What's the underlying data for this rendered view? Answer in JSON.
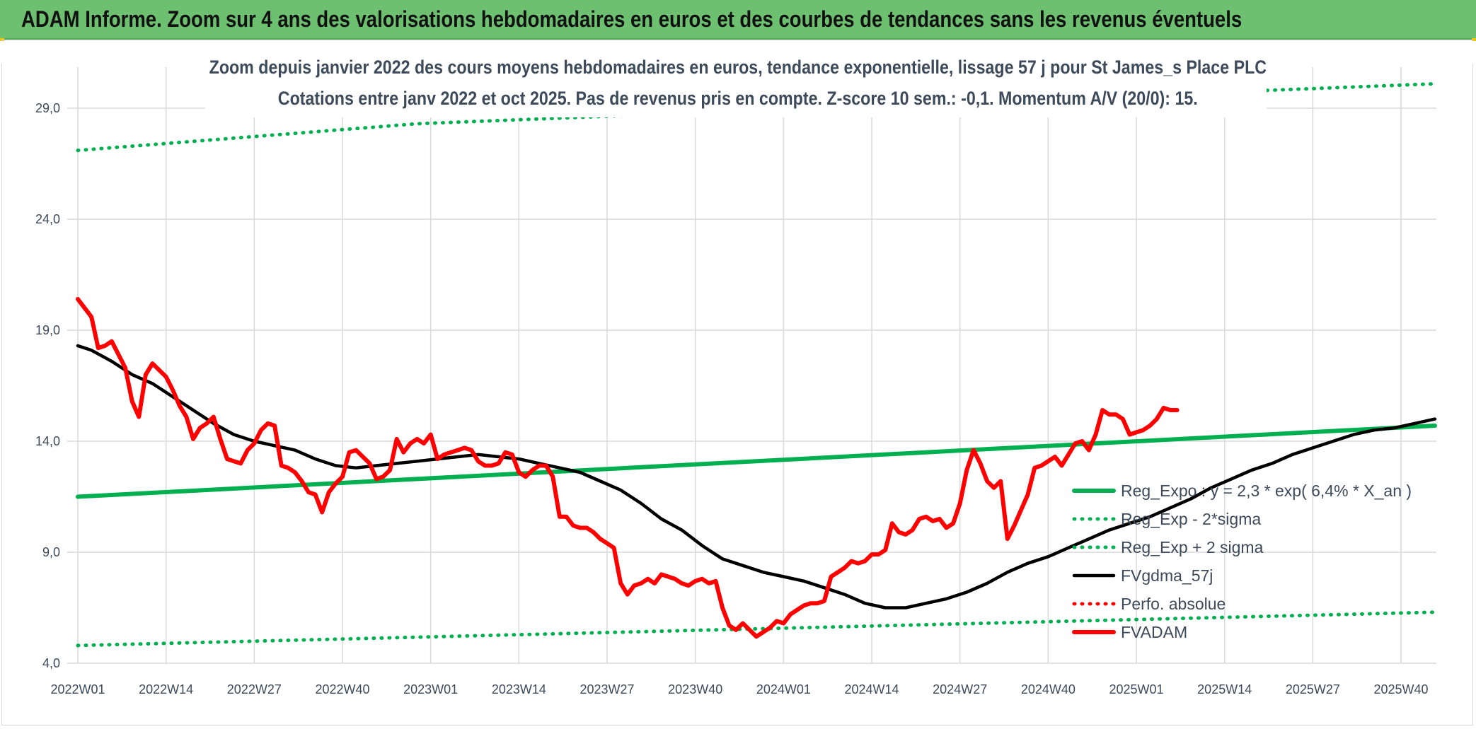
{
  "banner": {
    "title": "ADAM Informe. Zoom sur 4 ans des valorisations hebdomadaires en euros et des courbes de tendances sans les revenus éventuels"
  },
  "colors": {
    "banner_bg": "#6cc070",
    "trend_green": "#00b050",
    "price_red": "#ff0000",
    "smooth_black": "#000000",
    "grid": "#d9d9d9",
    "text": "#3d4a5a"
  },
  "chart_data": {
    "type": "line",
    "title_line1": "Zoom depuis janvier 2022 des cours moyens hebdomadaires en euros, tendance exponentielle, lissage 57 j pour St James_s Place PLC",
    "title_line2": "Cotations entre janv 2022 et oct 2025. Pas de revenus pris en compte. Z-score 10 sem.: -0,1. Momentum A/V (20/0): 15.",
    "xlabel": "",
    "ylabel": "",
    "ylim": [
      4.0,
      30.0
    ],
    "y_ticks": [
      "4,0",
      "9,0",
      "14,0",
      "19,0",
      "24,0",
      "29,0"
    ],
    "y_tick_values": [
      4,
      9,
      14,
      19,
      24,
      29
    ],
    "x_ticks": [
      "2022W01",
      "2022W14",
      "2022W27",
      "2022W40",
      "2023W01",
      "2023W14",
      "2023W27",
      "2023W40",
      "2024W01",
      "2024W14",
      "2024W27",
      "2024W40",
      "2025W01",
      "2025W14",
      "2025W27",
      "2025W40"
    ],
    "x_tick_index": [
      0,
      13,
      26,
      39,
      52,
      65,
      78,
      91,
      104,
      117,
      130,
      143,
      156,
      169,
      182,
      195
    ],
    "n_weeks": 201,
    "grid": true,
    "legend_position": "right",
    "series": [
      {
        "name": "Reg_Expo : y = 2,3 * exp( 6,4% *  X_an )",
        "style": "solid-thick",
        "color": "#00b050",
        "points": [
          [
            0,
            11.5
          ],
          [
            200,
            14.7
          ]
        ]
      },
      {
        "name": "Reg_Exp - 2*sigma",
        "style": "dotted",
        "color": "#00b050",
        "points": [
          [
            0,
            4.8
          ],
          [
            200,
            6.3
          ]
        ]
      },
      {
        "name": "Reg_Exp + 2 sigma",
        "style": "dotted",
        "color": "#00b050",
        "points": [
          [
            0,
            27.1
          ],
          [
            50,
            28.3
          ],
          [
            200,
            30.1
          ]
        ]
      },
      {
        "name": "FVgdma_57j",
        "style": "solid",
        "color": "#000000",
        "points": [
          [
            0,
            18.3
          ],
          [
            2,
            18.1
          ],
          [
            5,
            17.6
          ],
          [
            8,
            17.0
          ],
          [
            11,
            16.6
          ],
          [
            14,
            16.0
          ],
          [
            17,
            15.4
          ],
          [
            20,
            14.8
          ],
          [
            23,
            14.3
          ],
          [
            26,
            14.0
          ],
          [
            29,
            13.8
          ],
          [
            32,
            13.6
          ],
          [
            35,
            13.2
          ],
          [
            38,
            12.9
          ],
          [
            41,
            12.8
          ],
          [
            44,
            12.9
          ],
          [
            47,
            13.0
          ],
          [
            50,
            13.1
          ],
          [
            53,
            13.2
          ],
          [
            56,
            13.3
          ],
          [
            59,
            13.4
          ],
          [
            62,
            13.3
          ],
          [
            65,
            13.2
          ],
          [
            68,
            13.0
          ],
          [
            71,
            12.8
          ],
          [
            74,
            12.6
          ],
          [
            77,
            12.2
          ],
          [
            80,
            11.8
          ],
          [
            83,
            11.2
          ],
          [
            86,
            10.5
          ],
          [
            89,
            10.0
          ],
          [
            92,
            9.3
          ],
          [
            95,
            8.7
          ],
          [
            98,
            8.4
          ],
          [
            101,
            8.1
          ],
          [
            104,
            7.9
          ],
          [
            107,
            7.7
          ],
          [
            110,
            7.4
          ],
          [
            113,
            7.1
          ],
          [
            116,
            6.7
          ],
          [
            119,
            6.5
          ],
          [
            122,
            6.5
          ],
          [
            125,
            6.7
          ],
          [
            128,
            6.9
          ],
          [
            131,
            7.2
          ],
          [
            134,
            7.6
          ],
          [
            137,
            8.1
          ],
          [
            140,
            8.5
          ],
          [
            143,
            8.8
          ],
          [
            146,
            9.2
          ],
          [
            149,
            9.6
          ],
          [
            152,
            10.0
          ],
          [
            155,
            10.3
          ],
          [
            158,
            10.6
          ],
          [
            161,
            11.0
          ],
          [
            164,
            11.4
          ],
          [
            167,
            11.9
          ],
          [
            170,
            12.3
          ],
          [
            173,
            12.7
          ],
          [
            176,
            13.0
          ],
          [
            179,
            13.4
          ],
          [
            182,
            13.7
          ],
          [
            185,
            14.0
          ],
          [
            188,
            14.3
          ],
          [
            191,
            14.5
          ],
          [
            194,
            14.6
          ],
          [
            197,
            14.8
          ],
          [
            200,
            15.0
          ]
        ]
      },
      {
        "name": "Perfo. absolue",
        "style": "dotted",
        "color": "#ff0000",
        "points": []
      },
      {
        "name": "FVADAM",
        "style": "solid-thick",
        "color": "#ff0000",
        "points": [
          [
            0,
            20.4
          ],
          [
            1,
            20.0
          ],
          [
            2,
            19.6
          ],
          [
            3,
            18.2
          ],
          [
            4,
            18.3
          ],
          [
            5,
            18.5
          ],
          [
            6,
            17.9
          ],
          [
            7,
            17.3
          ],
          [
            8,
            15.8
          ],
          [
            9,
            15.1
          ],
          [
            10,
            17.0
          ],
          [
            11,
            17.5
          ],
          [
            12,
            17.2
          ],
          [
            13,
            16.9
          ],
          [
            14,
            16.3
          ],
          [
            15,
            15.6
          ],
          [
            16,
            15.1
          ],
          [
            17,
            14.1
          ],
          [
            18,
            14.6
          ],
          [
            19,
            14.8
          ],
          [
            20,
            15.1
          ],
          [
            21,
            14.1
          ],
          [
            22,
            13.2
          ],
          [
            23,
            13.1
          ],
          [
            24,
            13.0
          ],
          [
            25,
            13.6
          ],
          [
            26,
            13.9
          ],
          [
            27,
            14.5
          ],
          [
            28,
            14.8
          ],
          [
            29,
            14.7
          ],
          [
            30,
            12.9
          ],
          [
            31,
            12.8
          ],
          [
            32,
            12.6
          ],
          [
            33,
            12.2
          ],
          [
            34,
            11.7
          ],
          [
            35,
            11.6
          ],
          [
            36,
            10.8
          ],
          [
            37,
            11.7
          ],
          [
            38,
            12.1
          ],
          [
            39,
            12.4
          ],
          [
            40,
            13.5
          ],
          [
            41,
            13.6
          ],
          [
            42,
            13.3
          ],
          [
            43,
            13.0
          ],
          [
            44,
            12.3
          ],
          [
            45,
            12.4
          ],
          [
            46,
            12.7
          ],
          [
            47,
            14.1
          ],
          [
            48,
            13.5
          ],
          [
            49,
            13.9
          ],
          [
            50,
            14.1
          ],
          [
            51,
            13.9
          ],
          [
            52,
            14.3
          ],
          [
            53,
            13.2
          ],
          [
            54,
            13.4
          ],
          [
            55,
            13.5
          ],
          [
            56,
            13.6
          ],
          [
            57,
            13.7
          ],
          [
            58,
            13.6
          ],
          [
            59,
            13.1
          ],
          [
            60,
            12.9
          ],
          [
            61,
            12.9
          ],
          [
            62,
            13.0
          ],
          [
            63,
            13.5
          ],
          [
            64,
            13.4
          ],
          [
            65,
            12.6
          ],
          [
            66,
            12.4
          ],
          [
            67,
            12.7
          ],
          [
            68,
            12.9
          ],
          [
            69,
            12.9
          ],
          [
            70,
            12.4
          ],
          [
            71,
            10.6
          ],
          [
            72,
            10.6
          ],
          [
            73,
            10.2
          ],
          [
            74,
            10.1
          ],
          [
            75,
            10.1
          ],
          [
            76,
            9.9
          ],
          [
            77,
            9.6
          ],
          [
            78,
            9.4
          ],
          [
            79,
            9.2
          ],
          [
            80,
            7.6
          ],
          [
            81,
            7.1
          ],
          [
            82,
            7.5
          ],
          [
            83,
            7.6
          ],
          [
            84,
            7.8
          ],
          [
            85,
            7.6
          ],
          [
            86,
            8.0
          ],
          [
            87,
            7.9
          ],
          [
            88,
            7.8
          ],
          [
            89,
            7.6
          ],
          [
            90,
            7.5
          ],
          [
            91,
            7.7
          ],
          [
            92,
            7.8
          ],
          [
            93,
            7.6
          ],
          [
            94,
            7.7
          ],
          [
            95,
            6.5
          ],
          [
            96,
            5.7
          ],
          [
            97,
            5.5
          ],
          [
            98,
            5.8
          ],
          [
            99,
            5.5
          ],
          [
            100,
            5.2
          ],
          [
            101,
            5.4
          ],
          [
            102,
            5.6
          ],
          [
            103,
            5.9
          ],
          [
            104,
            5.8
          ],
          [
            105,
            6.2
          ],
          [
            106,
            6.4
          ],
          [
            107,
            6.6
          ],
          [
            108,
            6.7
          ],
          [
            109,
            6.7
          ],
          [
            110,
            6.8
          ],
          [
            111,
            7.9
          ],
          [
            112,
            8.1
          ],
          [
            113,
            8.3
          ],
          [
            114,
            8.6
          ],
          [
            115,
            8.5
          ],
          [
            116,
            8.6
          ],
          [
            117,
            8.9
          ],
          [
            118,
            8.9
          ],
          [
            119,
            9.1
          ],
          [
            120,
            10.3
          ],
          [
            121,
            9.9
          ],
          [
            122,
            9.8
          ],
          [
            123,
            10.0
          ],
          [
            124,
            10.5
          ],
          [
            125,
            10.6
          ],
          [
            126,
            10.4
          ],
          [
            127,
            10.5
          ],
          [
            128,
            10.1
          ],
          [
            129,
            10.3
          ],
          [
            130,
            11.2
          ],
          [
            131,
            12.7
          ],
          [
            132,
            13.6
          ],
          [
            133,
            13.0
          ],
          [
            134,
            12.2
          ],
          [
            135,
            11.9
          ],
          [
            136,
            12.2
          ],
          [
            137,
            9.6
          ],
          [
            138,
            10.2
          ],
          [
            139,
            10.9
          ],
          [
            140,
            11.6
          ],
          [
            141,
            12.8
          ],
          [
            142,
            12.9
          ],
          [
            143,
            13.1
          ],
          [
            144,
            13.3
          ],
          [
            145,
            12.9
          ],
          [
            146,
            13.4
          ],
          [
            147,
            13.9
          ],
          [
            148,
            14.0
          ],
          [
            149,
            13.6
          ],
          [
            150,
            14.3
          ],
          [
            151,
            15.4
          ],
          [
            152,
            15.2
          ],
          [
            153,
            15.2
          ],
          [
            154,
            15.0
          ],
          [
            155,
            14.3
          ],
          [
            156,
            14.4
          ],
          [
            157,
            14.5
          ],
          [
            158,
            14.7
          ],
          [
            159,
            15.0
          ],
          [
            160,
            15.5
          ],
          [
            161,
            15.4
          ],
          [
            162,
            15.4
          ]
        ]
      }
    ]
  }
}
